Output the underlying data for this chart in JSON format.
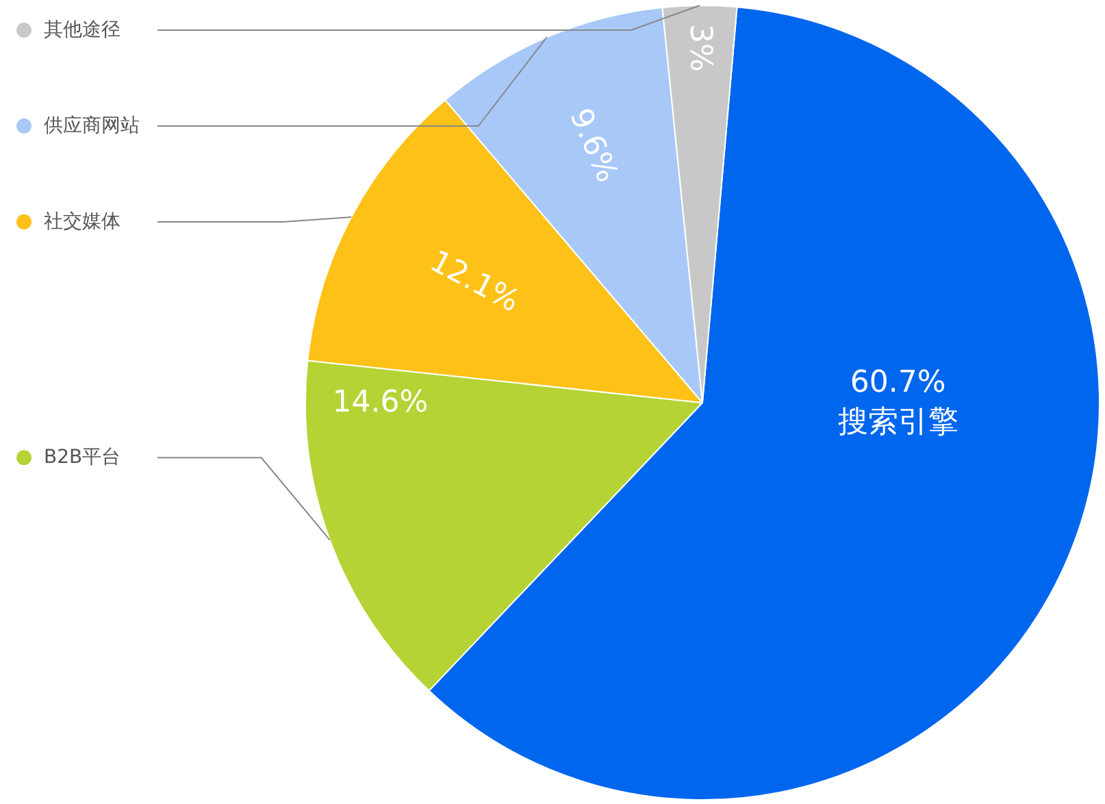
{
  "chart_data": {
    "type": "pie",
    "categories": [
      "搜索引擎",
      "B2B平台",
      "社交媒体",
      "供应商网站",
      "其他途径"
    ],
    "values": [
      60.7,
      14.6,
      12.1,
      9.6,
      3
    ],
    "colors": [
      "#0066ee",
      "#b5d334",
      "#fdc117",
      "#a8c8f8",
      "#c8c8c8"
    ],
    "value_labels": [
      "60.7%",
      "14.6%",
      "12.1%",
      "9.6%",
      "3%"
    ],
    "legend": "left"
  }
}
